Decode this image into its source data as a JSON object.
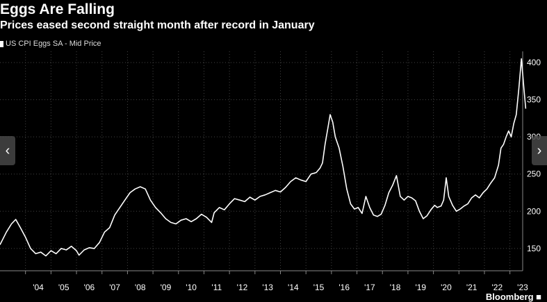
{
  "title": "Eggs Are Falling",
  "subtitle": "Prices eased second straight month after record in January",
  "legend_label": "US CPI Eggs SA - Mid Price",
  "source_label": "Bloomberg ■",
  "nav": {
    "prev_glyph": "‹",
    "next_glyph": "›"
  },
  "colors": {
    "background": "#000000",
    "line": "#ffffff",
    "grid": "#444444"
  },
  "chart_data": {
    "type": "line",
    "title": "Eggs Are Falling",
    "subtitle": "Prices eased second straight month after record in January",
    "xlabel": "",
    "ylabel": "",
    "xlim": [
      2003.0,
      2023.5
    ],
    "ylim": [
      120,
      415
    ],
    "grid": true,
    "legend_position": "top-left",
    "x_tick_labels": [
      "'04",
      "'05",
      "'06",
      "'07",
      "'08",
      "'09",
      "'10",
      "'11",
      "'12",
      "'13",
      "'14",
      "'15",
      "'16",
      "'17",
      "'18",
      "'19",
      "'20",
      "'21",
      "'22",
      "'23"
    ],
    "y_ticks": [
      150,
      200,
      250,
      300,
      350,
      400
    ],
    "series": [
      {
        "name": "US CPI Eggs SA - Mid Price",
        "points": [
          [
            2003.0,
            155
          ],
          [
            2003.25,
            172
          ],
          [
            2003.45,
            183
          ],
          [
            2003.62,
            189
          ],
          [
            2003.8,
            178
          ],
          [
            2004.0,
            165
          ],
          [
            2004.2,
            150
          ],
          [
            2004.4,
            143
          ],
          [
            2004.6,
            145
          ],
          [
            2004.8,
            140
          ],
          [
            2005.0,
            147
          ],
          [
            2005.2,
            143
          ],
          [
            2005.4,
            150
          ],
          [
            2005.6,
            148
          ],
          [
            2005.8,
            153
          ],
          [
            2006.0,
            147
          ],
          [
            2006.1,
            141
          ],
          [
            2006.3,
            148
          ],
          [
            2006.5,
            151
          ],
          [
            2006.7,
            150
          ],
          [
            2006.9,
            158
          ],
          [
            2007.1,
            172
          ],
          [
            2007.3,
            178
          ],
          [
            2007.5,
            195
          ],
          [
            2007.7,
            205
          ],
          [
            2007.9,
            215
          ],
          [
            2008.1,
            225
          ],
          [
            2008.3,
            230
          ],
          [
            2008.5,
            233
          ],
          [
            2008.7,
            230
          ],
          [
            2008.9,
            215
          ],
          [
            2009.1,
            205
          ],
          [
            2009.3,
            198
          ],
          [
            2009.5,
            190
          ],
          [
            2009.7,
            185
          ],
          [
            2009.9,
            183
          ],
          [
            2010.1,
            188
          ],
          [
            2010.3,
            190
          ],
          [
            2010.5,
            186
          ],
          [
            2010.7,
            190
          ],
          [
            2010.9,
            196
          ],
          [
            2011.1,
            192
          ],
          [
            2011.3,
            185
          ],
          [
            2011.4,
            198
          ],
          [
            2011.6,
            205
          ],
          [
            2011.8,
            202
          ],
          [
            2012.0,
            210
          ],
          [
            2012.2,
            217
          ],
          [
            2012.4,
            215
          ],
          [
            2012.6,
            213
          ],
          [
            2012.8,
            219
          ],
          [
            2013.0,
            215
          ],
          [
            2013.2,
            220
          ],
          [
            2013.4,
            222
          ],
          [
            2013.6,
            225
          ],
          [
            2013.8,
            228
          ],
          [
            2014.0,
            226
          ],
          [
            2014.2,
            232
          ],
          [
            2014.4,
            240
          ],
          [
            2014.6,
            245
          ],
          [
            2014.8,
            242
          ],
          [
            2015.0,
            240
          ],
          [
            2015.2,
            250
          ],
          [
            2015.4,
            252
          ],
          [
            2015.55,
            258
          ],
          [
            2015.65,
            265
          ],
          [
            2015.75,
            290
          ],
          [
            2015.85,
            310
          ],
          [
            2015.95,
            330
          ],
          [
            2016.05,
            320
          ],
          [
            2016.15,
            300
          ],
          [
            2016.3,
            285
          ],
          [
            2016.45,
            260
          ],
          [
            2016.6,
            230
          ],
          [
            2016.75,
            210
          ],
          [
            2016.9,
            203
          ],
          [
            2017.05,
            205
          ],
          [
            2017.2,
            197
          ],
          [
            2017.35,
            220
          ],
          [
            2017.5,
            205
          ],
          [
            2017.65,
            195
          ],
          [
            2017.8,
            193
          ],
          [
            2017.95,
            196
          ],
          [
            2018.1,
            208
          ],
          [
            2018.25,
            225
          ],
          [
            2018.4,
            235
          ],
          [
            2018.55,
            248
          ],
          [
            2018.7,
            220
          ],
          [
            2018.85,
            215
          ],
          [
            2019.0,
            220
          ],
          [
            2019.15,
            218
          ],
          [
            2019.3,
            214
          ],
          [
            2019.45,
            200
          ],
          [
            2019.6,
            190
          ],
          [
            2019.75,
            194
          ],
          [
            2019.9,
            202
          ],
          [
            2020.05,
            208
          ],
          [
            2020.15,
            205
          ],
          [
            2020.3,
            207
          ],
          [
            2020.4,
            215
          ],
          [
            2020.5,
            245
          ],
          [
            2020.6,
            220
          ],
          [
            2020.75,
            208
          ],
          [
            2020.9,
            200
          ],
          [
            2021.05,
            203
          ],
          [
            2021.2,
            207
          ],
          [
            2021.35,
            210
          ],
          [
            2021.5,
            218
          ],
          [
            2021.65,
            222
          ],
          [
            2021.8,
            218
          ],
          [
            2021.95,
            225
          ],
          [
            2022.1,
            230
          ],
          [
            2022.25,
            238
          ],
          [
            2022.4,
            245
          ],
          [
            2022.55,
            262
          ],
          [
            2022.65,
            285
          ],
          [
            2022.75,
            290
          ],
          [
            2022.85,
            300
          ],
          [
            2022.95,
            308
          ],
          [
            2023.05,
            300
          ],
          [
            2023.15,
            318
          ],
          [
            2023.25,
            330
          ],
          [
            2023.35,
            365
          ],
          [
            2023.45,
            405
          ],
          [
            2023.55,
            365
          ],
          [
            2023.62,
            338
          ]
        ]
      }
    ]
  }
}
